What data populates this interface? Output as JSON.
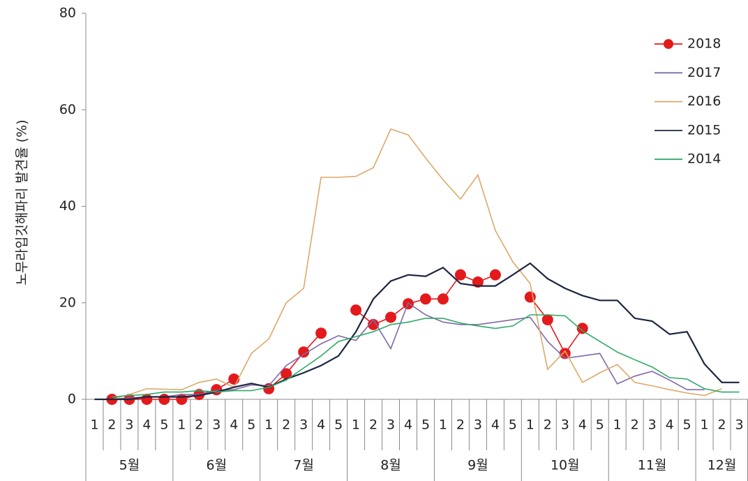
{
  "chart_data": {
    "type": "line",
    "y_label": "노무라입깃해파리 발견율 (%)",
    "categories": [
      "1",
      "2",
      "3",
      "4",
      "5",
      "1",
      "2",
      "3",
      "4",
      "5",
      "1",
      "2",
      "3",
      "4",
      "5",
      "1",
      "2",
      "3",
      "4",
      "5",
      "1",
      "2",
      "3",
      "4",
      "5",
      "1",
      "2",
      "3",
      "4",
      "5",
      "1",
      "2",
      "3",
      "4",
      "5",
      "1",
      "2",
      "3"
    ],
    "groups": [
      "5월",
      "6월",
      "7월",
      "8월",
      "9월",
      "10월",
      "11월",
      "12월"
    ],
    "ylim": [
      0,
      80
    ],
    "yticks": [
      0,
      20,
      40,
      60,
      80
    ],
    "grid": false,
    "legend": "upper right",
    "series": [
      {
        "name": "2018",
        "color": "#e31a1c",
        "marker": "circle",
        "values": [
          null,
          0,
          0,
          0,
          0,
          0,
          1,
          2,
          4.2,
          null,
          2.2,
          5.3,
          9.8,
          13.7,
          null,
          18.5,
          15.5,
          17,
          19.8,
          20.8,
          20.8,
          25.8,
          24.3,
          25.8,
          null,
          21.2,
          16.5,
          9.5,
          14.7,
          null,
          null,
          null,
          null,
          null,
          null,
          null,
          null,
          null
        ]
      },
      {
        "name": "2017",
        "color": "#8068a8",
        "values": [
          0,
          0,
          0.3,
          0.5,
          0.5,
          1,
          1,
          1.8,
          2,
          3,
          2.8,
          7,
          9.3,
          11.5,
          13.2,
          12.2,
          16.5,
          10.5,
          20,
          17.5,
          16,
          15.5,
          15.5,
          16,
          16.5,
          17,
          12,
          8.5,
          9,
          9.5,
          3.2,
          4.8,
          5.8,
          4,
          2,
          2,
          null,
          null
        ]
      },
      {
        "name": "2016",
        "color": "#dca868",
        "values": [
          null,
          0,
          1,
          2.2,
          2.1,
          2,
          3.5,
          4.2,
          2.5,
          9.5,
          12.5,
          20,
          23,
          46,
          46,
          46.2,
          48,
          56,
          54.8,
          50,
          45.5,
          41.5,
          46.5,
          35,
          28.5,
          24,
          6.2,
          10,
          3.5,
          5.5,
          7.2,
          3.5,
          2.8,
          2,
          1.3,
          0.8,
          2.2,
          null
        ]
      },
      {
        "name": "2015",
        "color": "#1c2540",
        "values": [
          0,
          0,
          0,
          0.5,
          0.5,
          0.5,
          0.8,
          1.5,
          2.5,
          3.3,
          2.5,
          4.2,
          5.5,
          7,
          9,
          14,
          20.8,
          24.5,
          25.8,
          25.5,
          27.3,
          24,
          23.5,
          23.5,
          25.8,
          28.2,
          25,
          23,
          21.5,
          20.5,
          20.5,
          16.8,
          16.2,
          13.5,
          14,
          7.3,
          3.5,
          3.5
        ]
      },
      {
        "name": "2014",
        "color": "#2eaa66",
        "values": [
          null,
          0.5,
          0.8,
          1,
          1.5,
          1.5,
          1.8,
          1.5,
          1.8,
          1.8,
          2.5,
          4,
          6.5,
          9,
          12,
          13,
          14,
          15.5,
          16,
          16.8,
          16.8,
          15.8,
          15.2,
          14.7,
          15.2,
          17.5,
          17.5,
          17.3,
          14.2,
          12,
          9.8,
          8.2,
          6.7,
          4.5,
          4.2,
          2.2,
          1.5,
          1.5
        ]
      }
    ]
  }
}
